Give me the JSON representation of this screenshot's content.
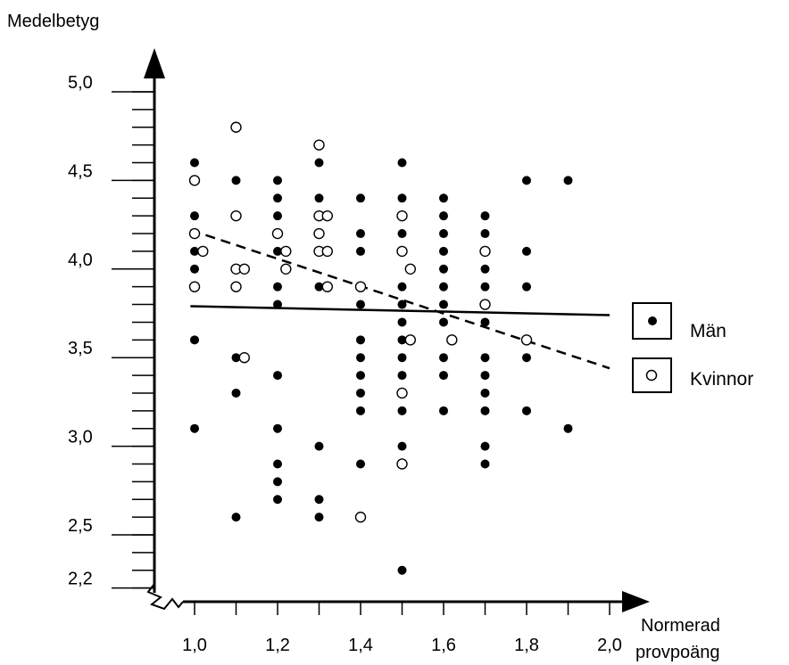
{
  "chart_data": {
    "type": "scatter",
    "ylabel": "Medelbetyg",
    "xlabel_line1": "Normerad",
    "xlabel_line2": "provpoäng",
    "xlim": [
      1.0,
      2.0
    ],
    "ylim": [
      2.2,
      5.0
    ],
    "x_ticks": [
      "1,0",
      "1,2",
      "1,4",
      "1,6",
      "1,8",
      "2,0"
    ],
    "x_tick_values": [
      1.0,
      1.2,
      1.4,
      1.6,
      1.8,
      2.0
    ],
    "y_ticks": [
      "5,0",
      "4,5",
      "4,0",
      "3,5",
      "3,0",
      "2,5",
      "2,2"
    ],
    "y_tick_values": [
      5.0,
      4.5,
      4.0,
      3.5,
      3.0,
      2.5,
      2.2
    ],
    "grid": false,
    "legend_position": "right",
    "series": [
      {
        "name": "Män",
        "marker": "filled-circle",
        "color": "#000000",
        "points": [
          [
            1.0,
            4.6
          ],
          [
            1.0,
            4.5
          ],
          [
            1.0,
            4.3
          ],
          [
            1.0,
            4.1
          ],
          [
            1.0,
            4.0
          ],
          [
            1.0,
            3.6
          ],
          [
            1.0,
            3.1
          ],
          [
            1.1,
            4.5
          ],
          [
            1.1,
            3.5
          ],
          [
            1.1,
            3.3
          ],
          [
            1.1,
            2.6
          ],
          [
            1.2,
            4.5
          ],
          [
            1.2,
            4.4
          ],
          [
            1.2,
            4.3
          ],
          [
            1.2,
            4.2
          ],
          [
            1.2,
            4.1
          ],
          [
            1.2,
            3.9
          ],
          [
            1.2,
            3.8
          ],
          [
            1.2,
            3.4
          ],
          [
            1.2,
            3.1
          ],
          [
            1.2,
            2.9
          ],
          [
            1.2,
            2.8
          ],
          [
            1.2,
            2.7
          ],
          [
            1.3,
            4.6
          ],
          [
            1.3,
            4.4
          ],
          [
            1.3,
            4.3
          ],
          [
            1.3,
            4.2
          ],
          [
            1.3,
            4.1
          ],
          [
            1.3,
            3.9
          ],
          [
            1.3,
            3.0
          ],
          [
            1.3,
            2.7
          ],
          [
            1.3,
            2.6
          ],
          [
            1.4,
            4.4
          ],
          [
            1.4,
            4.2
          ],
          [
            1.4,
            4.1
          ],
          [
            1.4,
            3.9
          ],
          [
            1.4,
            3.8
          ],
          [
            1.4,
            3.6
          ],
          [
            1.4,
            3.5
          ],
          [
            1.4,
            3.4
          ],
          [
            1.4,
            3.3
          ],
          [
            1.4,
            3.2
          ],
          [
            1.4,
            2.9
          ],
          [
            1.5,
            4.6
          ],
          [
            1.5,
            4.4
          ],
          [
            1.5,
            4.2
          ],
          [
            1.5,
            4.1
          ],
          [
            1.5,
            3.9
          ],
          [
            1.5,
            3.8
          ],
          [
            1.5,
            3.7
          ],
          [
            1.5,
            3.6
          ],
          [
            1.5,
            3.5
          ],
          [
            1.5,
            3.4
          ],
          [
            1.5,
            3.2
          ],
          [
            1.5,
            3.0
          ],
          [
            1.5,
            2.3
          ],
          [
            1.6,
            4.4
          ],
          [
            1.6,
            4.3
          ],
          [
            1.6,
            4.2
          ],
          [
            1.6,
            4.1
          ],
          [
            1.6,
            4.0
          ],
          [
            1.6,
            3.9
          ],
          [
            1.6,
            3.8
          ],
          [
            1.6,
            3.7
          ],
          [
            1.6,
            3.5
          ],
          [
            1.6,
            3.4
          ],
          [
            1.6,
            3.2
          ],
          [
            1.7,
            4.3
          ],
          [
            1.7,
            4.2
          ],
          [
            1.7,
            4.1
          ],
          [
            1.7,
            4.0
          ],
          [
            1.7,
            3.9
          ],
          [
            1.7,
            3.7
          ],
          [
            1.7,
            3.5
          ],
          [
            1.7,
            3.4
          ],
          [
            1.7,
            3.3
          ],
          [
            1.7,
            3.2
          ],
          [
            1.7,
            3.0
          ],
          [
            1.7,
            2.9
          ],
          [
            1.8,
            4.5
          ],
          [
            1.8,
            4.1
          ],
          [
            1.8,
            3.9
          ],
          [
            1.8,
            3.5
          ],
          [
            1.8,
            3.2
          ],
          [
            1.9,
            4.5
          ],
          [
            1.9,
            3.1
          ]
        ]
      },
      {
        "name": "Kvinnor",
        "marker": "open-circle",
        "color": "#000000",
        "points": [
          [
            1.0,
            4.5
          ],
          [
            1.0,
            4.2
          ],
          [
            1.02,
            4.1
          ],
          [
            1.0,
            3.9
          ],
          [
            1.1,
            4.8
          ],
          [
            1.1,
            4.3
          ],
          [
            1.1,
            4.0
          ],
          [
            1.12,
            4.0
          ],
          [
            1.1,
            3.9
          ],
          [
            1.12,
            3.5
          ],
          [
            1.22,
            4.1
          ],
          [
            1.22,
            4.0
          ],
          [
            1.2,
            4.2
          ],
          [
            1.3,
            4.7
          ],
          [
            1.3,
            4.3
          ],
          [
            1.32,
            4.3
          ],
          [
            1.3,
            4.2
          ],
          [
            1.3,
            4.1
          ],
          [
            1.32,
            4.1
          ],
          [
            1.32,
            3.9
          ],
          [
            1.4,
            3.9
          ],
          [
            1.4,
            2.6
          ],
          [
            1.5,
            4.3
          ],
          [
            1.5,
            4.1
          ],
          [
            1.52,
            4.0
          ],
          [
            1.52,
            3.6
          ],
          [
            1.5,
            3.3
          ],
          [
            1.5,
            2.9
          ],
          [
            1.62,
            3.6
          ],
          [
            1.7,
            4.1
          ],
          [
            1.7,
            3.8
          ],
          [
            1.8,
            3.6
          ]
        ]
      }
    ],
    "trend_lines": [
      {
        "series": "Män",
        "style": "solid",
        "from": [
          0.99,
          3.79
        ],
        "to": [
          2.0,
          3.74
        ]
      },
      {
        "series": "Kvinnor",
        "style": "dashed",
        "from": [
          0.99,
          4.22
        ],
        "to": [
          2.0,
          3.44
        ]
      }
    ]
  }
}
